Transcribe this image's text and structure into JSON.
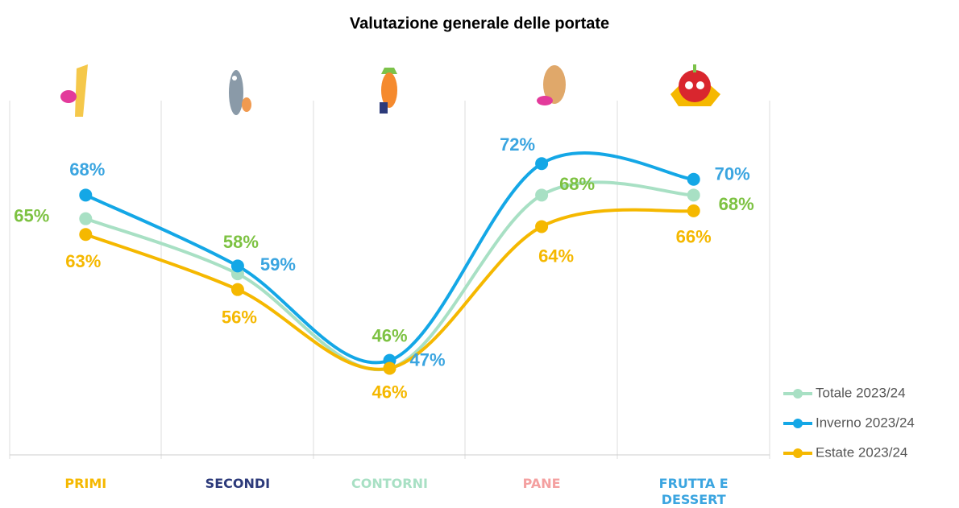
{
  "chart_data": {
    "type": "line",
    "title": "Valutazione generale delle portate",
    "categories": [
      "PRIMI",
      "SECONDI",
      "CONTORNI",
      "PANE",
      "FRUTTA E DESSERT"
    ],
    "category_colors": [
      "#f5b800",
      "#2c3a7a",
      "#a8e0c4",
      "#f4a0a0",
      "#3ba5e0"
    ],
    "ylim": [
      35,
      80
    ],
    "series": [
      {
        "name": "Totale 2023/24",
        "color": "#a8e0c4",
        "label_color": "#7dc242",
        "values": [
          65,
          58,
          46,
          68,
          68
        ],
        "value_labels": [
          "65%",
          "58%",
          "46%",
          "68%",
          "68%"
        ]
      },
      {
        "name": "Inverno 2023/24",
        "color": "#14a7e6",
        "label_color": "#3ba5e0",
        "values": [
          68,
          59,
          47,
          72,
          70
        ],
        "value_labels": [
          "68%",
          "59%",
          "47%",
          "72%",
          "70%"
        ]
      },
      {
        "name": "Estate 2023/24",
        "color": "#f5b800",
        "label_color": "#f5b800",
        "values": [
          63,
          56,
          46,
          64,
          66
        ],
        "value_labels": [
          "63%",
          "56%",
          "46%",
          "64%",
          "66%"
        ]
      }
    ]
  }
}
